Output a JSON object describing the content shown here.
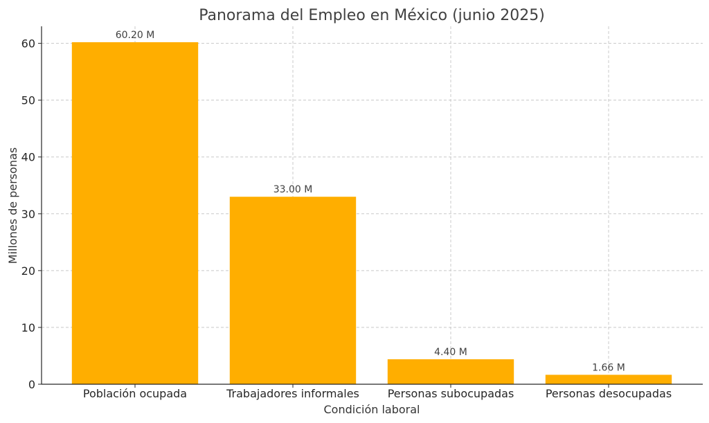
{
  "chart_data": {
    "type": "bar",
    "title": "Panorama del Empleo en México (junio 2025)",
    "xlabel": "Condición laboral",
    "ylabel": "Millones de personas",
    "categories": [
      "Población ocupada",
      "Trabajadores informales",
      "Personas subocupadas",
      "Personas desocupadas"
    ],
    "values": [
      60.2,
      33.0,
      4.4,
      1.66
    ],
    "data_labels": [
      "60.20 M",
      "33.00 M",
      "4.40 M",
      "1.66 M"
    ],
    "ylim": [
      0,
      63
    ],
    "yticks": [
      0,
      10,
      20,
      30,
      40,
      50,
      60
    ],
    "grid": true,
    "bar_color": "#FFAE00"
  }
}
